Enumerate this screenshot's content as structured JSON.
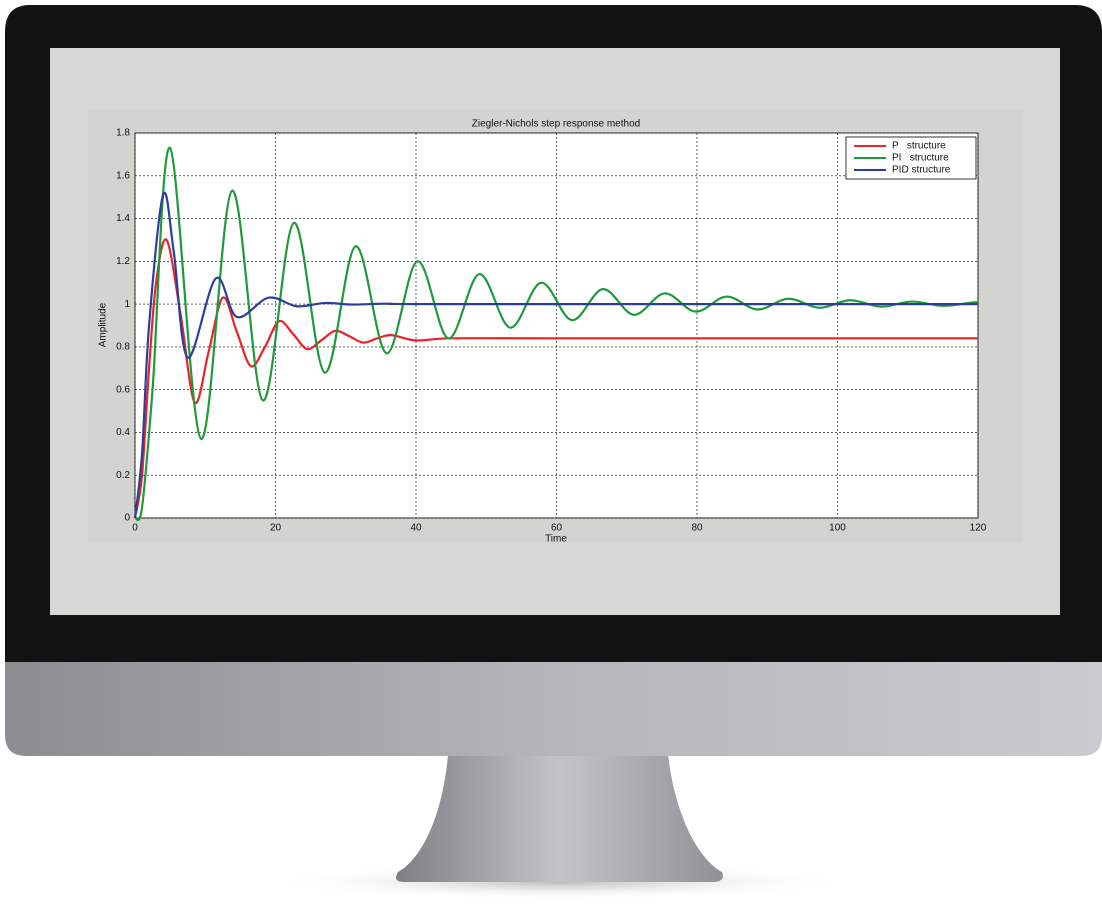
{
  "chart_data": {
    "type": "line",
    "title": "Ziegler-Nichols step response method",
    "x_label": "Time",
    "y_label": "Amplitude",
    "xlim": [
      0,
      120
    ],
    "xticks": [
      0,
      20,
      40,
      60,
      80,
      100,
      120
    ],
    "ylim": [
      0,
      1.8
    ],
    "yticks": [
      0,
      0.2,
      0.4,
      0.6,
      0.8,
      1,
      1.2,
      1.4,
      1.6,
      1.8
    ],
    "grid": true,
    "legend_position": "upper-right",
    "series": [
      {
        "name": "P   structure",
        "color": "#e8232a",
        "x": [
          0,
          1,
          2,
          3,
          4.5,
          6.5,
          8.5,
          10.5,
          12.5,
          14.5,
          16.5,
          18.5,
          20.5,
          22.5,
          24.5,
          26.5,
          28.5,
          30.5,
          32.5,
          34.5,
          36.5,
          40,
          45,
          60,
          120
        ],
        "values": [
          0,
          0.2,
          0.7,
          1.1,
          1.3,
          0.95,
          0.54,
          0.78,
          1.03,
          0.87,
          0.71,
          0.8,
          0.92,
          0.86,
          0.79,
          0.83,
          0.875,
          0.85,
          0.82,
          0.84,
          0.855,
          0.83,
          0.84,
          0.84,
          0.84
        ]
      },
      {
        "name": "PI   structure",
        "color": "#1f9a3a",
        "x": [
          0,
          1,
          2.5,
          5,
          9.4,
          13.8,
          18.2,
          22.6,
          27,
          31.4,
          35.8,
          40.2,
          44.6,
          49,
          53.4,
          57.8,
          62.2,
          66.6,
          71,
          75.4,
          79.8,
          84.2,
          88.6,
          93,
          97.4,
          101.8,
          106.2,
          110.6,
          115,
          119.4,
          120
        ],
        "values": [
          0,
          0.05,
          0.6,
          1.73,
          0.37,
          1.53,
          0.55,
          1.38,
          0.68,
          1.27,
          0.77,
          1.2,
          0.84,
          1.14,
          0.89,
          1.1,
          0.925,
          1.07,
          0.95,
          1.05,
          0.965,
          1.035,
          0.975,
          1.025,
          0.983,
          1.018,
          0.988,
          1.012,
          0.992,
          1.008,
          1.005
        ]
      },
      {
        "name": "PID structure",
        "color": "#2b3f9a",
        "x": [
          0,
          1,
          2,
          4,
          5.5,
          7.5,
          11.5,
          14.5,
          19,
          23,
          27,
          31,
          36,
          45,
          120
        ],
        "values": [
          0,
          0.3,
          0.9,
          1.51,
          1.25,
          0.75,
          1.12,
          0.94,
          1.03,
          0.99,
          1.005,
          0.998,
          1.002,
          1,
          1
        ]
      }
    ]
  }
}
